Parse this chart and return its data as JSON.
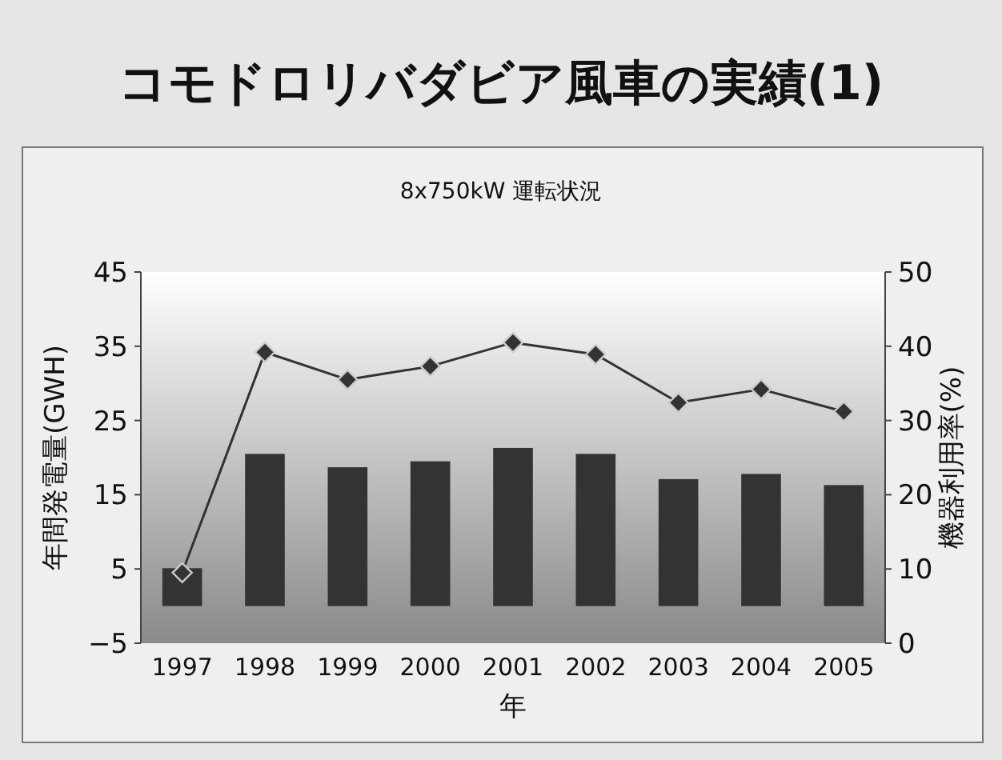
{
  "chart_data": {
    "type": "bar",
    "title": "コモドロリバダビア風車の実績(1)",
    "subtitle": "8x750kW 運転状況",
    "xlabel": "年",
    "ylabel": "年間発電量(GWH)",
    "y2label": "機器利用率(%)",
    "categories": [
      "1997",
      "1998",
      "1999",
      "2000",
      "2001",
      "2002",
      "2003",
      "2004",
      "2005"
    ],
    "ylim": [
      -5,
      45
    ],
    "yticks": [
      -5,
      5,
      15,
      25,
      35,
      45
    ],
    "y2lim": [
      0,
      50
    ],
    "y2ticks": [
      0,
      10,
      20,
      30,
      40,
      50
    ],
    "marker": "diamond",
    "line_style": "solid",
    "series": [
      {
        "color": "#333333",
        "values": [
          5.1,
          20.5,
          18.7,
          19.5,
          21.3,
          20.5,
          17.1,
          17.8,
          16.3
        ]
      },
      {
        "type": "line",
        "axis": "y2",
        "color": "#333333",
        "values": [
          9.5,
          39.2,
          35.5,
          37.3,
          40.5,
          38.9,
          32.4,
          34.2,
          31.2
        ]
      }
    ]
  }
}
